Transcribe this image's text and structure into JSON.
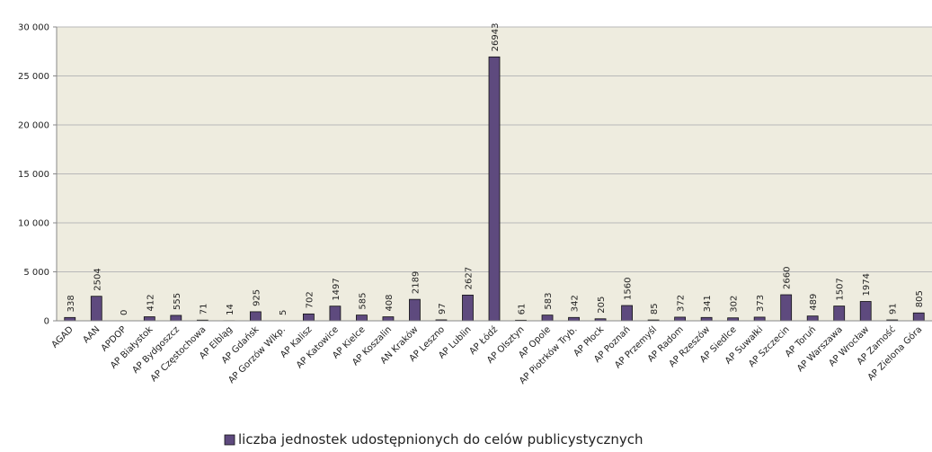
{
  "chart_data": {
    "type": "bar",
    "categories": [
      "AGAD",
      "AAN",
      "APDOP",
      "AP Białystok",
      "AP Bydgoszcz",
      "AP Częstochowa",
      "AP Elbląg",
      "AP Gdańsk",
      "AP Gorzów Wlkp.",
      "AP Kalisz",
      "AP Katowice",
      "AP Kielce",
      "AP Koszalin",
      "AN Kraków",
      "AP Leszno",
      "AP Lublin",
      "AP Łódź",
      "AP Olsztyn",
      "AP Opole",
      "AP Piotrków Tryb.",
      "AP Płock",
      "AP Poznań",
      "AP Przemyśl",
      "AP Radom",
      "AP Rzeszów",
      "AP Siedlce",
      "AP Suwałki",
      "AP Szczecin",
      "AP Toruń",
      "AP Warszawa",
      "AP Wrocław",
      "AP Zamość",
      "AP Zielona Góra"
    ],
    "series": [
      {
        "name": "liczba jednostek udostępnionych do celów publicystycznych",
        "color": "#5e4a7e",
        "values": [
          338,
          2504,
          0,
          412,
          555,
          71,
          14,
          925,
          5,
          702,
          1497,
          585,
          408,
          2189,
          97,
          2627,
          26943,
          61,
          583,
          342,
          205,
          1560,
          85,
          372,
          341,
          302,
          373,
          2660,
          489,
          1507,
          1974,
          91,
          805
        ]
      }
    ],
    "ylim": [
      0,
      30000
    ],
    "yticks": [
      0,
      {
        "value": 5000,
        "label": "5 000"
      },
      {
        "value": 10000,
        "label": "10 000"
      },
      {
        "value": 15000,
        "label": "15 000"
      },
      {
        "value": 20000,
        "label": "20 000"
      },
      {
        "value": 25000,
        "label": "25 000"
      },
      {
        "value": 30000,
        "label": "30 000"
      }
    ],
    "grid": true,
    "legend": "bottom"
  }
}
